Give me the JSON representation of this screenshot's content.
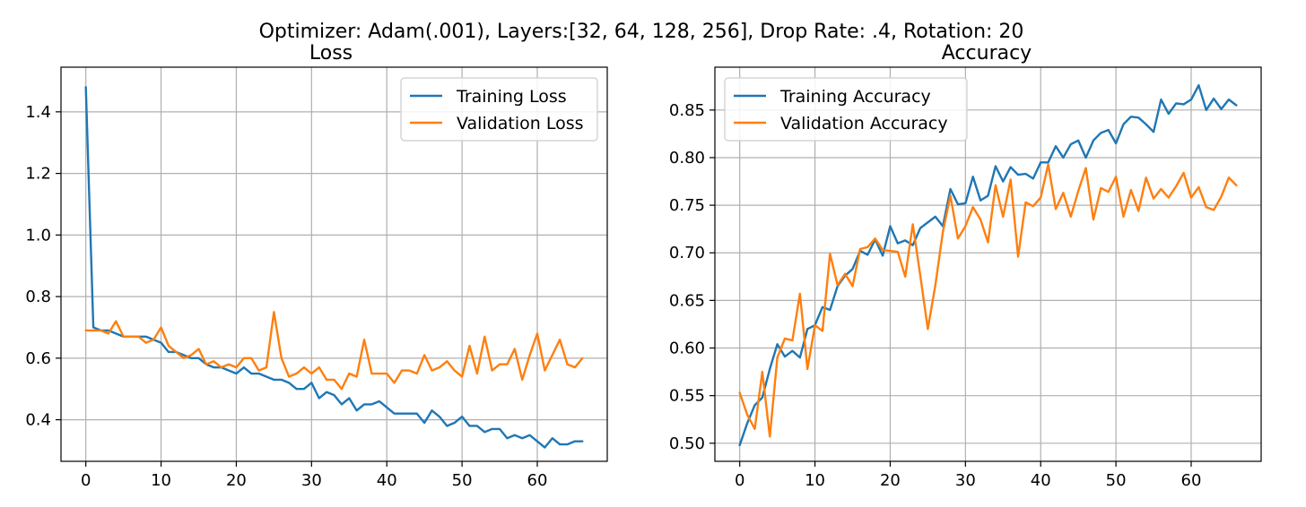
{
  "figure_title": "Optimizer: Adam(.001), Layers:[32, 64, 128, 256], Drop Rate: .4, Rotation: 20",
  "colors": {
    "training": "#1f77b4",
    "validation": "#ff7f0e"
  },
  "chart_data": [
    {
      "type": "line",
      "title": "Loss",
      "xlabel": "",
      "ylabel": "",
      "xlim": [
        -3.3,
        69.3
      ],
      "ylim": [
        0.265,
        1.545
      ],
      "xticks": [
        0,
        10,
        20,
        30,
        40,
        50,
        60
      ],
      "yticks": [
        0.4,
        0.6,
        0.8,
        1.0,
        1.2,
        1.4
      ],
      "ytick_format": 1,
      "grid": true,
      "legend_position": "top-right",
      "x": [
        0,
        1,
        2,
        3,
        4,
        5,
        6,
        7,
        8,
        9,
        10,
        11,
        12,
        13,
        14,
        15,
        16,
        17,
        18,
        19,
        20,
        21,
        22,
        23,
        24,
        25,
        26,
        27,
        28,
        29,
        30,
        31,
        32,
        33,
        34,
        35,
        36,
        37,
        38,
        39,
        40,
        41,
        42,
        43,
        44,
        45,
        46,
        47,
        48,
        49,
        50,
        51,
        52,
        53,
        54,
        55,
        56,
        57,
        58,
        59,
        60,
        61,
        62,
        63,
        64,
        65,
        66
      ],
      "series": [
        {
          "name": "Training Loss",
          "color_key": "training",
          "values": [
            1.48,
            0.7,
            0.69,
            0.69,
            0.68,
            0.67,
            0.67,
            0.67,
            0.67,
            0.66,
            0.65,
            0.62,
            0.62,
            0.61,
            0.6,
            0.6,
            0.58,
            0.57,
            0.57,
            0.56,
            0.55,
            0.57,
            0.55,
            0.55,
            0.54,
            0.53,
            0.53,
            0.52,
            0.5,
            0.5,
            0.52,
            0.47,
            0.49,
            0.48,
            0.45,
            0.47,
            0.43,
            0.45,
            0.45,
            0.46,
            0.44,
            0.42,
            0.42,
            0.42,
            0.42,
            0.39,
            0.43,
            0.41,
            0.38,
            0.39,
            0.41,
            0.38,
            0.38,
            0.36,
            0.37,
            0.37,
            0.34,
            0.35,
            0.34,
            0.35,
            0.33,
            0.31,
            0.34,
            0.32,
            0.32,
            0.33,
            0.33
          ]
        },
        {
          "name": "Validation Loss",
          "color_key": "validation",
          "values": [
            0.69,
            0.69,
            0.69,
            0.68,
            0.72,
            0.67,
            0.67,
            0.67,
            0.65,
            0.66,
            0.7,
            0.64,
            0.62,
            0.6,
            0.61,
            0.63,
            0.58,
            0.59,
            0.57,
            0.58,
            0.57,
            0.6,
            0.6,
            0.56,
            0.57,
            0.75,
            0.6,
            0.54,
            0.55,
            0.57,
            0.55,
            0.57,
            0.53,
            0.53,
            0.5,
            0.55,
            0.54,
            0.66,
            0.55,
            0.55,
            0.55,
            0.52,
            0.56,
            0.56,
            0.55,
            0.61,
            0.56,
            0.57,
            0.59,
            0.56,
            0.54,
            0.64,
            0.55,
            0.67,
            0.56,
            0.58,
            0.58,
            0.63,
            0.53,
            0.61,
            0.68,
            0.56,
            0.61,
            0.66,
            0.58,
            0.57,
            0.6
          ]
        }
      ]
    },
    {
      "type": "line",
      "title": "Accuracy",
      "xlabel": "",
      "ylabel": "",
      "xlim": [
        -3.3,
        69.3
      ],
      "ylim": [
        0.481,
        0.895
      ],
      "xticks": [
        0,
        10,
        20,
        30,
        40,
        50,
        60
      ],
      "yticks": [
        0.5,
        0.55,
        0.6,
        0.65,
        0.7,
        0.75,
        0.8,
        0.85
      ],
      "ytick_format": 2,
      "grid": true,
      "legend_position": "top-left",
      "x": [
        0,
        1,
        2,
        3,
        4,
        5,
        6,
        7,
        8,
        9,
        10,
        11,
        12,
        13,
        14,
        15,
        16,
        17,
        18,
        19,
        20,
        21,
        22,
        23,
        24,
        25,
        26,
        27,
        28,
        29,
        30,
        31,
        32,
        33,
        34,
        35,
        36,
        37,
        38,
        39,
        40,
        41,
        42,
        43,
        44,
        45,
        46,
        47,
        48,
        49,
        50,
        51,
        52,
        53,
        54,
        55,
        56,
        57,
        58,
        59,
        60,
        61,
        62,
        63,
        64,
        65,
        66
      ],
      "series": [
        {
          "name": "Training Accuracy",
          "color_key": "training",
          "values": [
            0.498,
            0.521,
            0.54,
            0.548,
            0.578,
            0.604,
            0.591,
            0.597,
            0.59,
            0.62,
            0.624,
            0.643,
            0.64,
            0.665,
            0.676,
            0.683,
            0.702,
            0.698,
            0.714,
            0.697,
            0.728,
            0.71,
            0.713,
            0.708,
            0.726,
            0.732,
            0.738,
            0.728,
            0.767,
            0.751,
            0.752,
            0.78,
            0.755,
            0.76,
            0.791,
            0.775,
            0.79,
            0.782,
            0.783,
            0.778,
            0.795,
            0.795,
            0.812,
            0.8,
            0.814,
            0.818,
            0.8,
            0.818,
            0.826,
            0.829,
            0.815,
            0.835,
            0.843,
            0.842,
            0.835,
            0.827,
            0.861,
            0.846,
            0.857,
            0.856,
            0.861,
            0.876,
            0.85,
            0.862,
            0.851,
            0.861,
            0.855
          ]
        },
        {
          "name": "Validation Accuracy",
          "color_key": "validation",
          "values": [
            0.553,
            0.53,
            0.515,
            0.575,
            0.507,
            0.59,
            0.61,
            0.608,
            0.657,
            0.578,
            0.624,
            0.618,
            0.699,
            0.666,
            0.678,
            0.665,
            0.704,
            0.706,
            0.715,
            0.703,
            0.702,
            0.701,
            0.675,
            0.73,
            0.676,
            0.62,
            0.666,
            0.722,
            0.76,
            0.715,
            0.728,
            0.748,
            0.735,
            0.711,
            0.771,
            0.738,
            0.777,
            0.696,
            0.753,
            0.749,
            0.758,
            0.793,
            0.746,
            0.763,
            0.738,
            0.765,
            0.789,
            0.735,
            0.768,
            0.764,
            0.78,
            0.738,
            0.766,
            0.744,
            0.779,
            0.757,
            0.767,
            0.758,
            0.77,
            0.784,
            0.758,
            0.769,
            0.748,
            0.745,
            0.759,
            0.779,
            0.771
          ]
        }
      ]
    }
  ]
}
